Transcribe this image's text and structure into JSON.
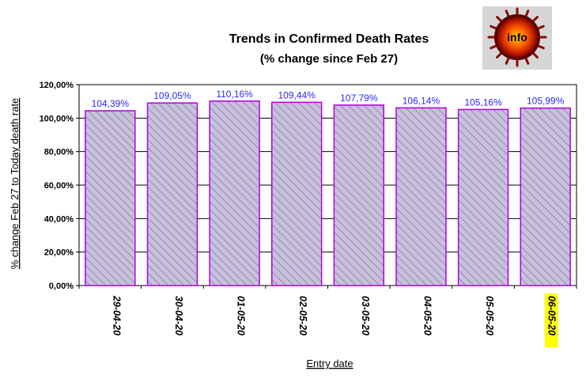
{
  "chart_data": {
    "type": "bar",
    "title": "Trends in Confirmed Death Rates",
    "subtitle": "(% change since Feb 27)",
    "xlabel": "Entry date",
    "ylabel": "% change Feb 27 to Today death rate",
    "categories": [
      "29-04-20",
      "30-04-20",
      "01-05-20",
      "02-05-20",
      "03-05-20",
      "04-05-20",
      "05-05-20",
      "06-05-20"
    ],
    "values": [
      104.39,
      109.05,
      110.16,
      109.44,
      107.79,
      106.14,
      105.16,
      105.99
    ],
    "data_labels": [
      "104,39%",
      "109,05%",
      "110,16%",
      "109,44%",
      "107,79%",
      "106,14%",
      "105,16%",
      "105,99%"
    ],
    "ylim": [
      0,
      120
    ],
    "yticks": [
      0,
      20,
      40,
      60,
      80,
      100,
      120
    ],
    "ytick_labels": [
      "0,00%",
      "20,00%",
      "40,00%",
      "60,00%",
      "80,00%",
      "100,00%",
      "120,00%"
    ],
    "highlighted_category": "06-05-20",
    "grid": "horizontal",
    "legend": "none",
    "colors": {
      "bar_fill": "#c8c0dc",
      "bar_hatch": "#6a6a8a",
      "bar_border": "#b000e0",
      "data_label": "#2a2aff",
      "highlight": "#ffff00",
      "logo_bg": "#d6d6d6"
    }
  },
  "logo": {
    "text": "info",
    "icon": "virus-info-logo-icon"
  }
}
